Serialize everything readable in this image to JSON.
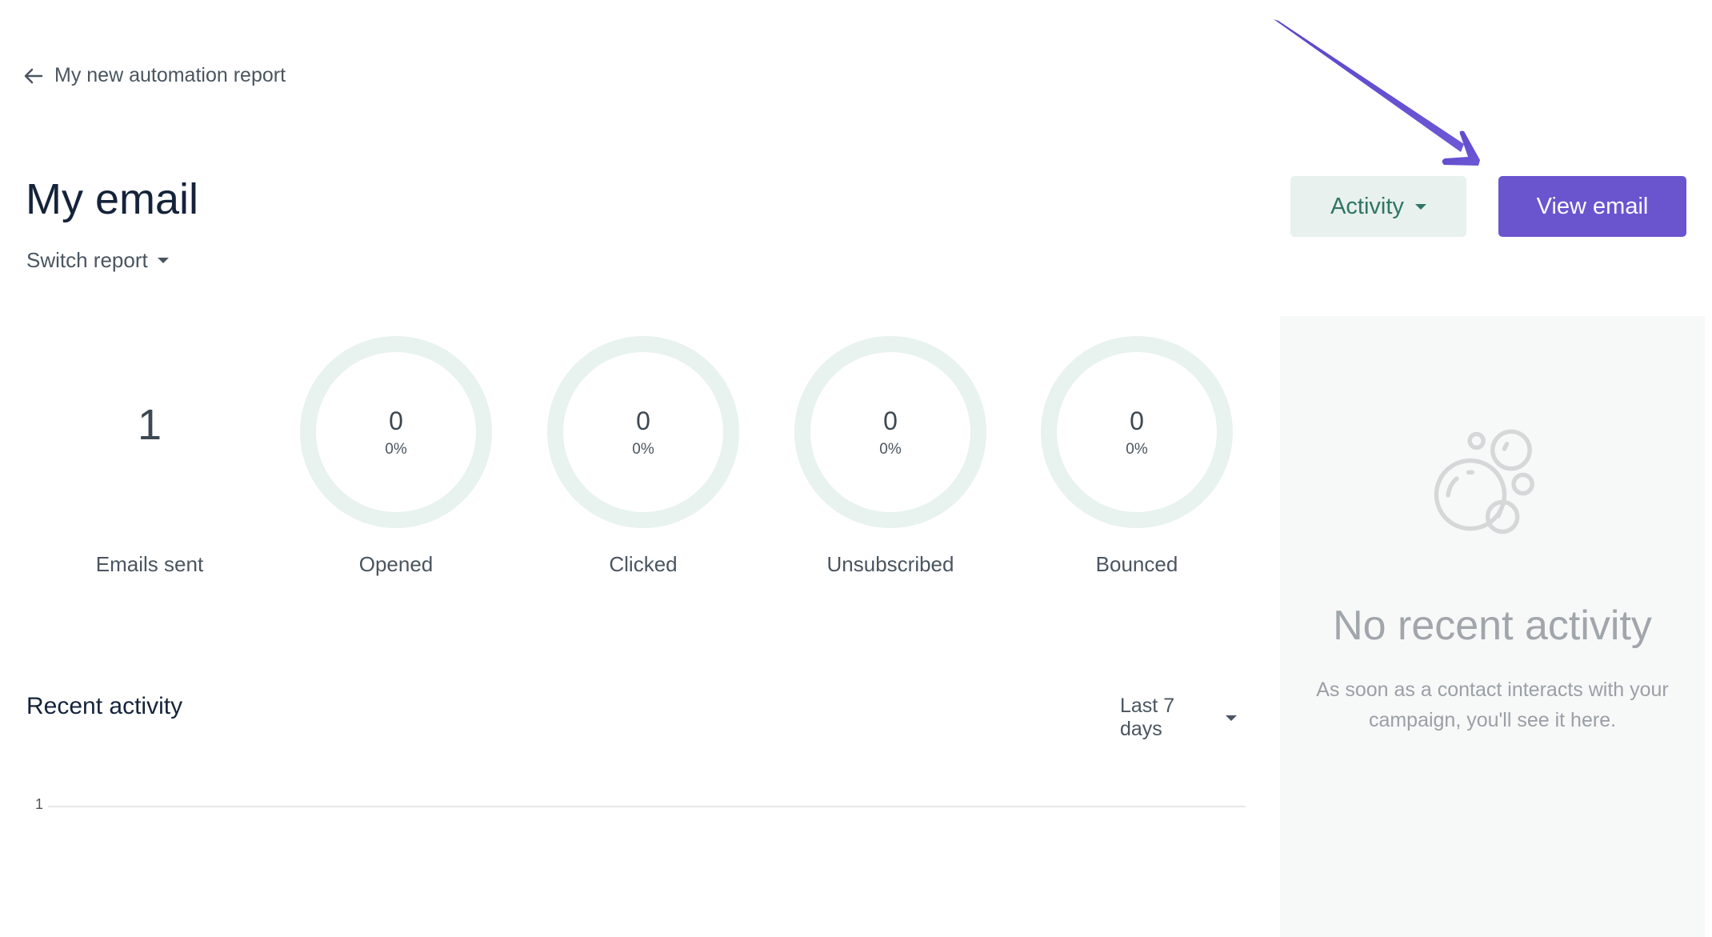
{
  "header": {
    "back_label": "My new automation report",
    "title": "My email",
    "switch_report": "Switch report"
  },
  "actions": {
    "activity": "Activity",
    "view_email": "View email",
    "accent": "#6a55cf"
  },
  "stats": {
    "emails_sent": {
      "value": "1",
      "label": "Emails sent"
    },
    "items": [
      {
        "value": "0",
        "percent": "0%",
        "label": "Opened"
      },
      {
        "value": "0",
        "percent": "0%",
        "label": "Clicked"
      },
      {
        "value": "0",
        "percent": "0%",
        "label": "Unsubscribed"
      },
      {
        "value": "0",
        "percent": "0%",
        "label": "Bounced"
      }
    ]
  },
  "recent": {
    "title": "Recent activity",
    "range": "Last 7 days"
  },
  "chart_data": {
    "type": "line",
    "y_ticks": [
      "1"
    ],
    "series": [],
    "grid": true
  },
  "activity_panel": {
    "icon": "bubbles-icon",
    "title": "No recent activity",
    "description": "As soon as a contact interacts with your campaign, you'll see it here."
  }
}
